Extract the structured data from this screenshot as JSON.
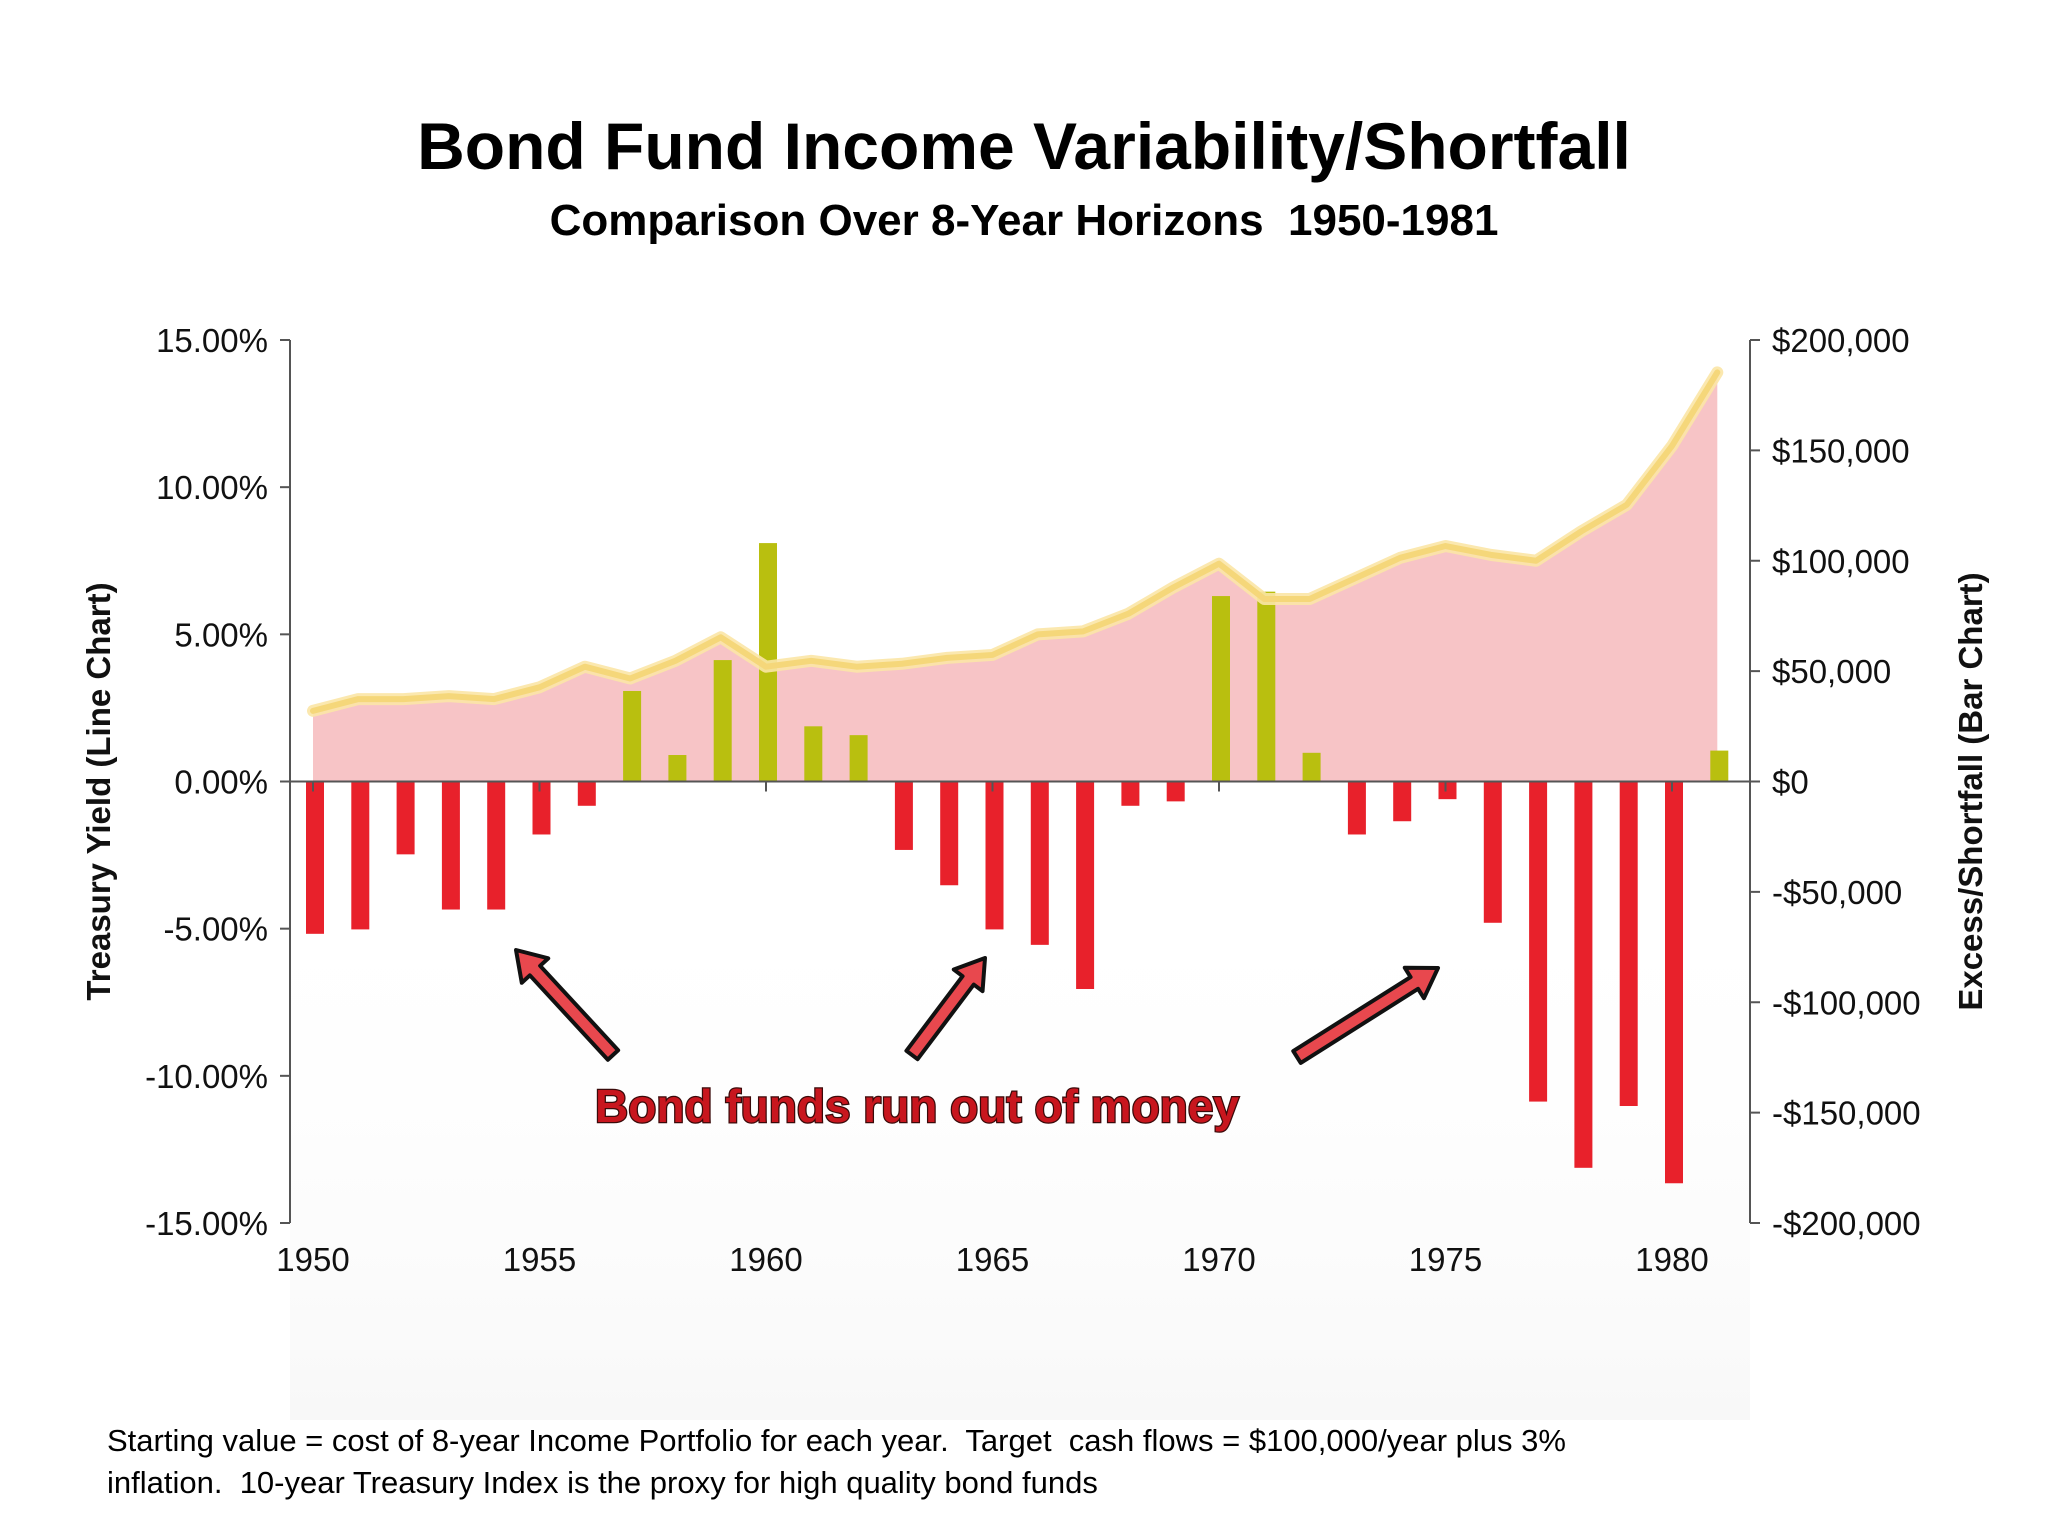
{
  "title": "Bond Fund Income Variability/Shortfall",
  "subtitle": "Comparison Over 8-Year Horizons  1950-1981",
  "footnote": {
    "line1": "Starting value = cost of 8-year Income Portfolio for each year.  Target  cash flows = $100,000/year plus 3%",
    "line2": "inflation.  10-year Treasury Index is the proxy for high quality bond funds"
  },
  "colors": {
    "line": "#f5d77a",
    "area": "#f7c4c6",
    "bar_positive": "#b9bf0f",
    "bar_negative": "#e8212b",
    "arrow": "#e8484e",
    "annotation": "#c8161e"
  },
  "chart_data": {
    "type": "bar+area",
    "ylabel_left": "Treasury Yield (Line Chart)",
    "ylabel_right": "Excess/Shortfall (Bar Chart)",
    "ylim_left": [
      -15,
      15
    ],
    "ylim_right": [
      -200000,
      200000
    ],
    "left_ticks": [
      "15.00%",
      "10.00%",
      "5.00%",
      "0.00%",
      "-5.00%",
      "-10.00%",
      "-15.00%"
    ],
    "right_ticks": [
      "$200,000",
      "$150,000",
      "$100,000",
      "$50,000",
      "$0",
      "-$50,000",
      "-$100,000",
      "-$150,000",
      "-$200,000"
    ],
    "x_ticks": [
      "1950",
      "1955",
      "1960",
      "1965",
      "1970",
      "1975",
      "1980"
    ],
    "annotation": "Bond funds run out of money",
    "years": [
      1950,
      1951,
      1952,
      1953,
      1954,
      1955,
      1956,
      1957,
      1958,
      1959,
      1960,
      1961,
      1962,
      1963,
      1964,
      1965,
      1966,
      1967,
      1968,
      1969,
      1970,
      1971,
      1972,
      1973,
      1974,
      1975,
      1976,
      1977,
      1978,
      1979,
      1980,
      1981
    ],
    "series": [
      {
        "name": "Treasury Yield",
        "kind": "line_area",
        "axis": "left",
        "values": [
          2.4,
          2.8,
          2.8,
          2.9,
          2.8,
          3.2,
          3.9,
          3.5,
          4.1,
          4.9,
          3.9,
          4.1,
          3.9,
          4.0,
          4.2,
          4.3,
          5.0,
          5.1,
          5.7,
          6.6,
          7.4,
          6.2,
          6.2,
          6.9,
          7.6,
          8.0,
          7.7,
          7.5,
          8.5,
          9.4,
          11.4,
          13.9
        ]
      },
      {
        "name": "Excess/Shortfall",
        "kind": "bar",
        "axis": "right",
        "values": [
          -69000,
          -67000,
          -33000,
          -58000,
          -58000,
          -24000,
          -11000,
          41000,
          12000,
          55000,
          108000,
          25000,
          21000,
          -31000,
          -47000,
          -67000,
          -74000,
          -94000,
          -11000,
          -9000,
          84000,
          86000,
          13000,
          -24000,
          -18000,
          -8000,
          -64000,
          -145000,
          -175000,
          -147000,
          -182000,
          14000
        ]
      }
    ]
  }
}
